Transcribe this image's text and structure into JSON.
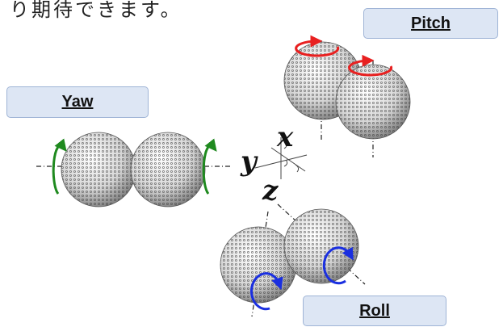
{
  "caption_text": "り期待できます。",
  "labels": {
    "pitch": "Pitch",
    "yaw": "Yaw",
    "roll": "Roll"
  },
  "axes": {
    "x": "x",
    "y": "y",
    "z": "z"
  },
  "colors": {
    "pitch_arrow": "#e82020",
    "yaw_arrow": "#1f8a1f",
    "roll_arrow": "#1a2fe0",
    "label_fill": "#dde6f4",
    "label_border": "#9fb4d6",
    "sphere_mesh": "#555555"
  },
  "icons": {
    "sphere": "mesh-sphere-icon",
    "rotation": "rotation-arrow-icon"
  }
}
